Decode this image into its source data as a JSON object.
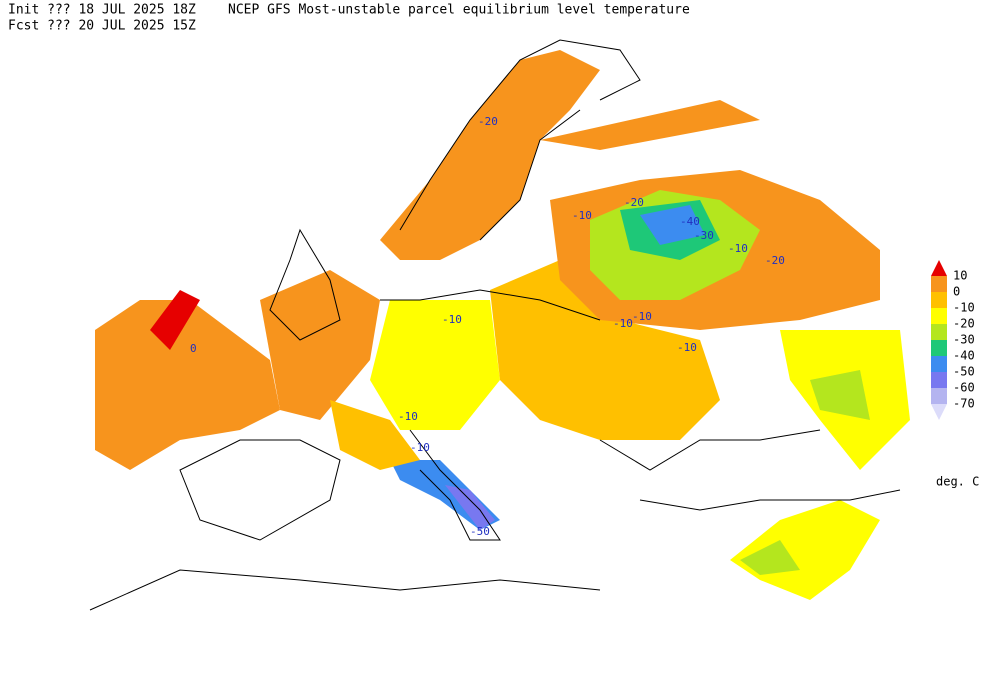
{
  "header": {
    "init": "Init  ??? 18 JUL 2025 18Z",
    "title": "NCEP GFS Most-unstable parcel equilibrium level temperature",
    "fcst": "Fcst ??? 20 JUL 2025 15Z"
  },
  "colorbar": {
    "levels": [
      10,
      0,
      -10,
      -20,
      -30,
      -40,
      -50,
      -60,
      -70
    ],
    "colors": [
      "#e60000",
      "#f7941d",
      "#ffc000",
      "#ffff00",
      "#b4e61e",
      "#1ec878",
      "#3c8cf0",
      "#7878f0",
      "#b4b4f0",
      "#dcdcfa"
    ],
    "units": "deg. C"
  },
  "map": {
    "contour_labels": [
      "-20",
      "-10",
      "-20",
      "-40",
      "-30",
      "-10",
      "-20",
      "-10",
      "-10",
      "-10",
      "-10",
      "-10",
      "-50",
      "-10",
      "0"
    ]
  }
}
